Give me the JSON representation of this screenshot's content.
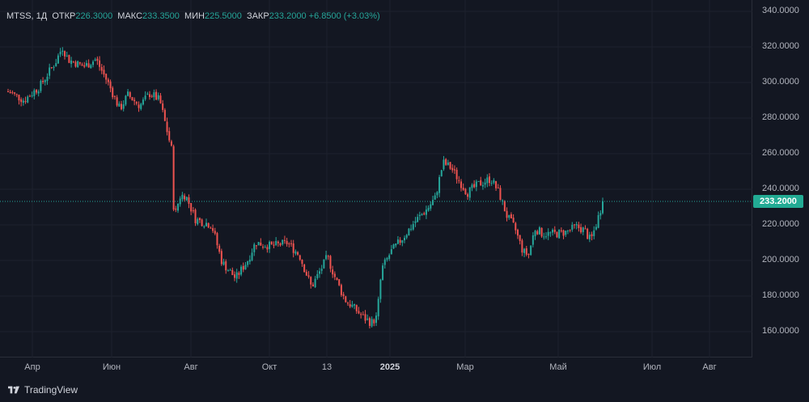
{
  "legend": {
    "symbol": "MTSS, 1Д",
    "open_label": "ОТКР",
    "open_value": "226.3000",
    "high_label": "МАКС",
    "high_value": "233.3500",
    "low_label": "МИН",
    "low_value": "225.5000",
    "close_label": "ЗАКР",
    "close_value": "233.2000",
    "change_value": "+6.8500 (+3.03%)"
  },
  "last_price": "233.2000",
  "price_ticks": [
    "340.0000",
    "320.0000",
    "300.0000",
    "280.0000",
    "260.0000",
    "240.0000",
    "220.0000",
    "200.0000",
    "180.0000",
    "160.0000"
  ],
  "time_ticks": [
    {
      "label": "Апр",
      "bold": false
    },
    {
      "label": "Июн",
      "bold": false
    },
    {
      "label": "Авг",
      "bold": false
    },
    {
      "label": "Окт",
      "bold": false
    },
    {
      "label": "13",
      "bold": false
    },
    {
      "label": "2025",
      "bold": true
    },
    {
      "label": "Мар",
      "bold": false
    },
    {
      "label": "Май",
      "bold": false
    },
    {
      "label": "Июл",
      "bold": false
    },
    {
      "label": "Авг",
      "bold": false
    }
  ],
  "colors": {
    "up": "#26a69a",
    "down": "#ef5350",
    "background": "#131722",
    "grid": "#1e222d",
    "last_price_line": "#26a69a"
  },
  "footer": {
    "brand": "TradingView",
    "logo_icon": "tradingview-logo-icon"
  },
  "chart_data": {
    "type": "candlestick",
    "symbol": "MTSS",
    "interval": "1Д",
    "ylim": [
      150,
      342
    ],
    "last_price": 233.2,
    "grid": true,
    "anchors": [
      [
        0,
        295
      ],
      [
        20,
        290
      ],
      [
        40,
        298
      ],
      [
        60,
        312
      ],
      [
        68,
        320
      ],
      [
        75,
        313
      ],
      [
        95,
        309
      ],
      [
        110,
        313
      ],
      [
        125,
        300
      ],
      [
        140,
        285
      ],
      [
        150,
        293
      ],
      [
        165,
        287
      ],
      [
        178,
        294
      ],
      [
        190,
        290
      ],
      [
        198,
        275
      ],
      [
        205,
        262
      ],
      [
        208,
        223
      ],
      [
        215,
        236
      ],
      [
        222,
        237
      ],
      [
        235,
        223
      ],
      [
        255,
        220
      ],
      [
        268,
        199
      ],
      [
        285,
        190
      ],
      [
        300,
        200
      ],
      [
        310,
        210
      ],
      [
        330,
        208
      ],
      [
        350,
        210
      ],
      [
        365,
        203
      ],
      [
        380,
        185
      ],
      [
        392,
        195
      ],
      [
        400,
        202
      ],
      [
        410,
        190
      ],
      [
        422,
        178
      ],
      [
        432,
        174
      ],
      [
        445,
        168
      ],
      [
        455,
        165
      ],
      [
        462,
        168
      ],
      [
        468,
        195
      ],
      [
        480,
        205
      ],
      [
        495,
        213
      ],
      [
        510,
        222
      ],
      [
        525,
        229
      ],
      [
        535,
        235
      ],
      [
        545,
        255
      ],
      [
        555,
        252
      ],
      [
        565,
        245
      ],
      [
        575,
        238
      ],
      [
        590,
        243
      ],
      [
        605,
        246
      ],
      [
        615,
        238
      ],
      [
        625,
        225
      ],
      [
        635,
        218
      ],
      [
        645,
        205
      ],
      [
        652,
        203
      ],
      [
        660,
        218
      ],
      [
        670,
        215
      ],
      [
        685,
        215
      ],
      [
        700,
        216
      ],
      [
        712,
        219
      ],
      [
        722,
        217
      ],
      [
        730,
        211
      ],
      [
        738,
        222
      ],
      [
        745,
        233.2
      ]
    ]
  }
}
